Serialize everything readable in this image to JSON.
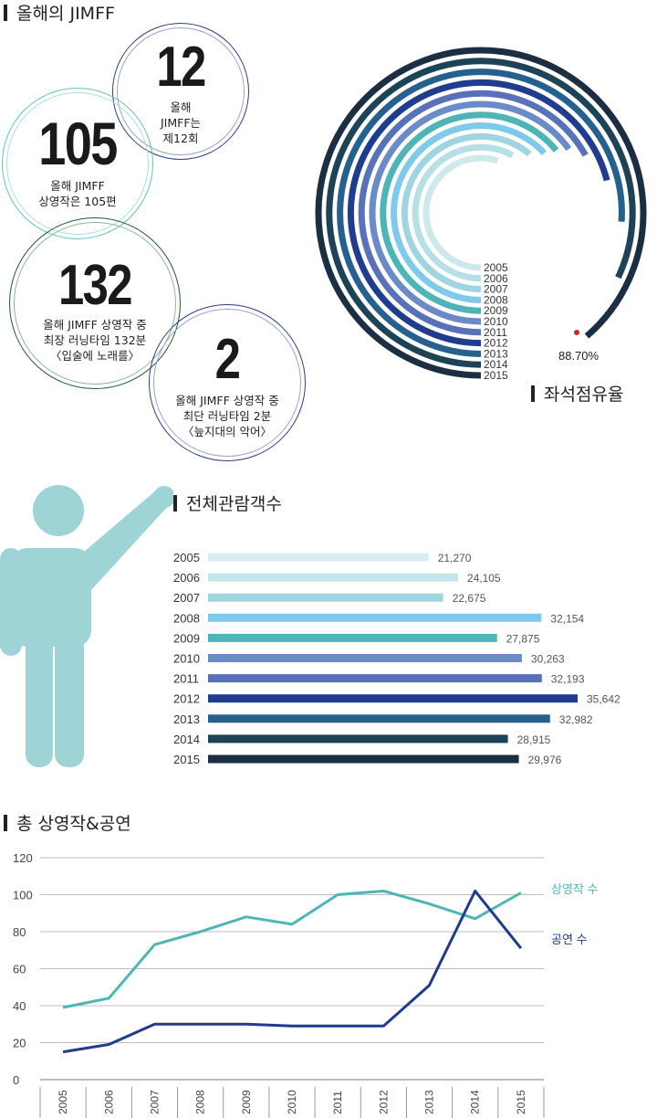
{
  "sections": {
    "jimff_title": "올해의 JIMFF",
    "occupancy_title": "좌석점유율",
    "attendance_title": "전체관람객수",
    "screenings_title": "총 상영작&공연"
  },
  "stats": [
    {
      "number": "12",
      "caption": "올해\nJIMFF는\n제12회"
    },
    {
      "number": "105",
      "caption": "올해 JIMFF\n상영작은 105편"
    },
    {
      "number": "132",
      "caption": "올해 JIMFF 상영작 중\n최장 러닝타임 132분\n〈입술에 노래를〉"
    },
    {
      "number": "2",
      "caption": "올해 JIMFF 상영작 중\n최단 러닝타임 2분\n〈늪지대의 악어〉"
    }
  ],
  "colors": {
    "accent_red": "#d0232a",
    "person": "#9fd4d6",
    "line_screenings": "#4db6b6",
    "line_performances": "#1f3a8f",
    "ring_12": "#2e3c86",
    "ring_105": "#5ec3c0",
    "ring_132": "#1e5a33",
    "ring_2": "#2e3c86"
  },
  "icons": {
    "person": "person-pointing-icon"
  },
  "chart_data": [
    {
      "type": "radial-bar",
      "title": "좌석점유율",
      "categories": [
        "2005",
        "2006",
        "2007",
        "2008",
        "2009",
        "2010",
        "2011",
        "2012",
        "2013",
        "2014",
        "2015"
      ],
      "colors": [
        "#cde9ec",
        "#b7e0e6",
        "#9ed5e0",
        "#7fcaea",
        "#4fb4b5",
        "#6a8ac8",
        "#5871b9",
        "#1f3c8e",
        "#26608e",
        "#1d4456",
        "#1c2f42"
      ],
      "values": [
        55,
        58,
        61,
        63,
        64,
        65,
        67,
        71,
        76,
        82,
        88.7
      ],
      "annotation": "88.70%"
    },
    {
      "type": "bar",
      "title": "전체관람객수",
      "categories": [
        "2005",
        "2006",
        "2007",
        "2008",
        "2009",
        "2010",
        "2011",
        "2012",
        "2013",
        "2014",
        "2015"
      ],
      "values": [
        21270,
        24105,
        22675,
        32154,
        27875,
        30263,
        32193,
        35642,
        32982,
        28915,
        29976
      ],
      "value_labels": [
        "21,270",
        "24,105",
        "22,675",
        "32,154",
        "27,875",
        "30,263",
        "32,193",
        "35,642",
        "32,982",
        "28,915",
        "29,976"
      ],
      "colors": [
        "#d7edf0",
        "#c4e6ea",
        "#9fd5de",
        "#7fcaea",
        "#4fb4b5",
        "#6a8ac8",
        "#5871b9",
        "#1f3c8e",
        "#26608e",
        "#1d4456",
        "#1c2f42"
      ]
    },
    {
      "type": "line",
      "title": "총 상영작&공연",
      "x": [
        "2005",
        "2006",
        "2007",
        "2008",
        "2009",
        "2010",
        "2011",
        "2012",
        "2013",
        "2014",
        "2015"
      ],
      "yticks": [
        "0",
        "20",
        "40",
        "60",
        "80",
        "100",
        "120"
      ],
      "ylim": [
        0,
        120
      ],
      "grid": true,
      "series": [
        {
          "name": "상영작 수",
          "values": [
            39,
            44,
            73,
            80,
            88,
            84,
            100,
            102,
            95,
            87,
            101
          ]
        },
        {
          "name": "공연 수",
          "values": [
            15,
            19,
            30,
            30,
            30,
            29,
            29,
            29,
            51,
            102,
            71
          ]
        }
      ]
    }
  ]
}
